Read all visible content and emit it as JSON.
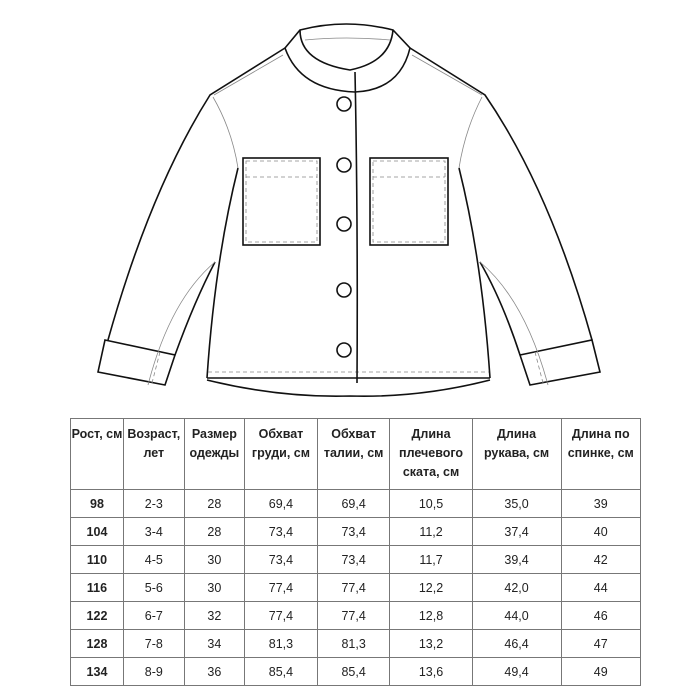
{
  "figure": {
    "type": "technical-sketch",
    "subject": "jacket-front",
    "button_count": 5,
    "pocket_count": 2
  },
  "table": {
    "headers": [
      "Рост, см",
      "Возраст, лет",
      "Размер одежды",
      "Обхват груди, см",
      "Обхват талии, см",
      "Длина плечевого ската, см",
      "Длина рукава, см",
      "Длина по спинке, см"
    ],
    "rows": [
      [
        "98",
        "2-3",
        "28",
        "69,4",
        "69,4",
        "10,5",
        "35,0",
        "39"
      ],
      [
        "104",
        "3-4",
        "28",
        "73,4",
        "73,4",
        "11,2",
        "37,4",
        "40"
      ],
      [
        "110",
        "4-5",
        "30",
        "73,4",
        "73,4",
        "11,7",
        "39,4",
        "42"
      ],
      [
        "116",
        "5-6",
        "30",
        "77,4",
        "77,4",
        "12,2",
        "42,0",
        "44"
      ],
      [
        "122",
        "6-7",
        "32",
        "77,4",
        "77,4",
        "12,8",
        "44,0",
        "46"
      ],
      [
        "128",
        "7-8",
        "34",
        "81,3",
        "81,3",
        "13,2",
        "46,4",
        "47"
      ],
      [
        "134",
        "8-9",
        "36",
        "85,4",
        "85,4",
        "13,6",
        "49,4",
        "49"
      ]
    ]
  }
}
